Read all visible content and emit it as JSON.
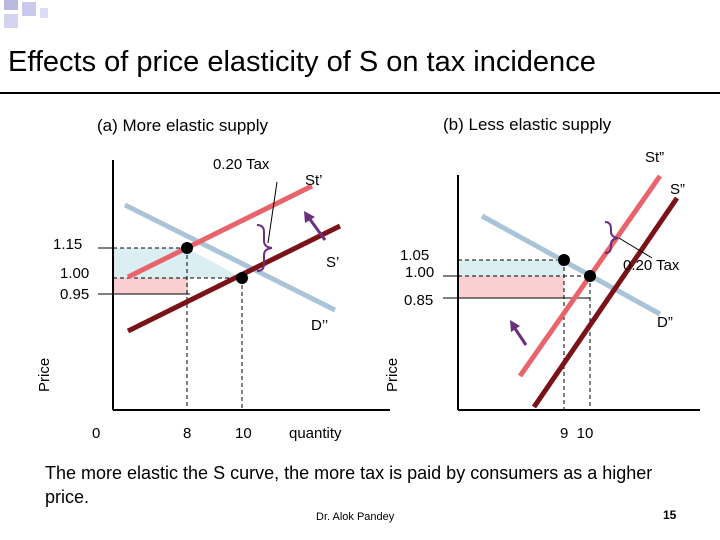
{
  "title": "Effects of price elasticity of S on tax incidence",
  "panels": {
    "a": {
      "title": "(a) More elastic supply",
      "tax_label": "0.20 Tax",
      "s_taxed_label": "St’",
      "s_label": "S’",
      "d_label": "D’’",
      "y_axis_label": "Price",
      "prices": [
        "1.15",
        "1.00",
        "0.95"
      ],
      "quantities": [
        "0",
        "8",
        "10"
      ],
      "x_axis_label": "quantity"
    },
    "b": {
      "title": "(b) Less elastic supply",
      "s_taxed_label": "St”",
      "s_label": "S”",
      "tax_label": "0.20 Tax",
      "d_label": "D”",
      "y_axis_label": "Price",
      "prices": [
        "1.05",
        "1.00",
        "0.85"
      ],
      "quantities": "9  10"
    }
  },
  "caption": "The more elastic the S curve, the more tax is paid by consumers as a higher price.",
  "author": "Dr. Alok Pandey",
  "page_number": "15",
  "colors": {
    "taxed_supply": "#e8646a",
    "supply": "#7a1218",
    "demand": "#a9c3d8",
    "consumer_burden": "#dbeef2",
    "producer_burden": "#f9cfd2",
    "arrow": "#6b2f7f"
  }
}
